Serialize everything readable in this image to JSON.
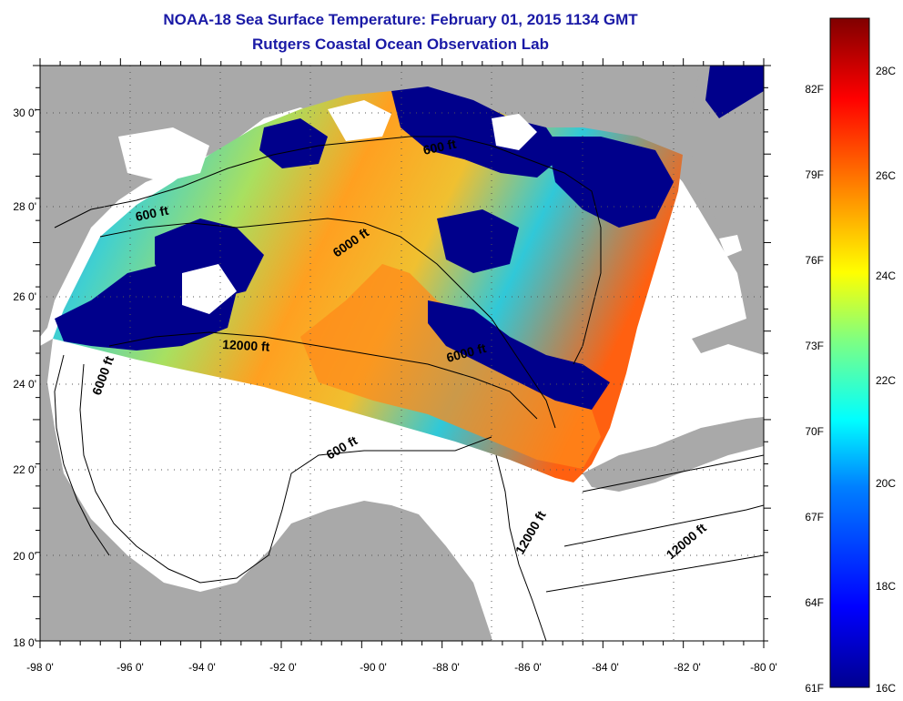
{
  "header": {
    "title": "NOAA-18 Sea Surface Temperature:  February 01, 2015 1134 GMT",
    "subtitle": "Rutgers Coastal Ocean Observation Lab"
  },
  "map": {
    "lon_ticks": [
      "-98 0'",
      "-96 0'",
      "-94 0'",
      "-92 0'",
      "-90 0'",
      "-88 0'",
      "-86 0'",
      "-84 0'",
      "-82 0'",
      "-80 0'"
    ],
    "lat_ticks": [
      "18 0'",
      "20 0'",
      "22 0'",
      "24 0'",
      "26 0'",
      "28 0'",
      "30 0'"
    ],
    "contour_labels": [
      "600 ft",
      "600 ft",
      "6000 ft",
      "12000 ft",
      "6000 ft",
      "6000 ft",
      "600 ft",
      "12000 ft",
      "12000 ft"
    ],
    "colors": {
      "land": "#a9a9a9",
      "water": "#ffffff",
      "cloud": "#00008b"
    }
  },
  "colorbar": {
    "fahrenheit": [
      "82F",
      "79F",
      "76F",
      "73F",
      "70F",
      "67F",
      "64F",
      "61F"
    ],
    "celsius": [
      "28C",
      "26C",
      "24C",
      "22C",
      "20C",
      "18C",
      "16C"
    ]
  }
}
